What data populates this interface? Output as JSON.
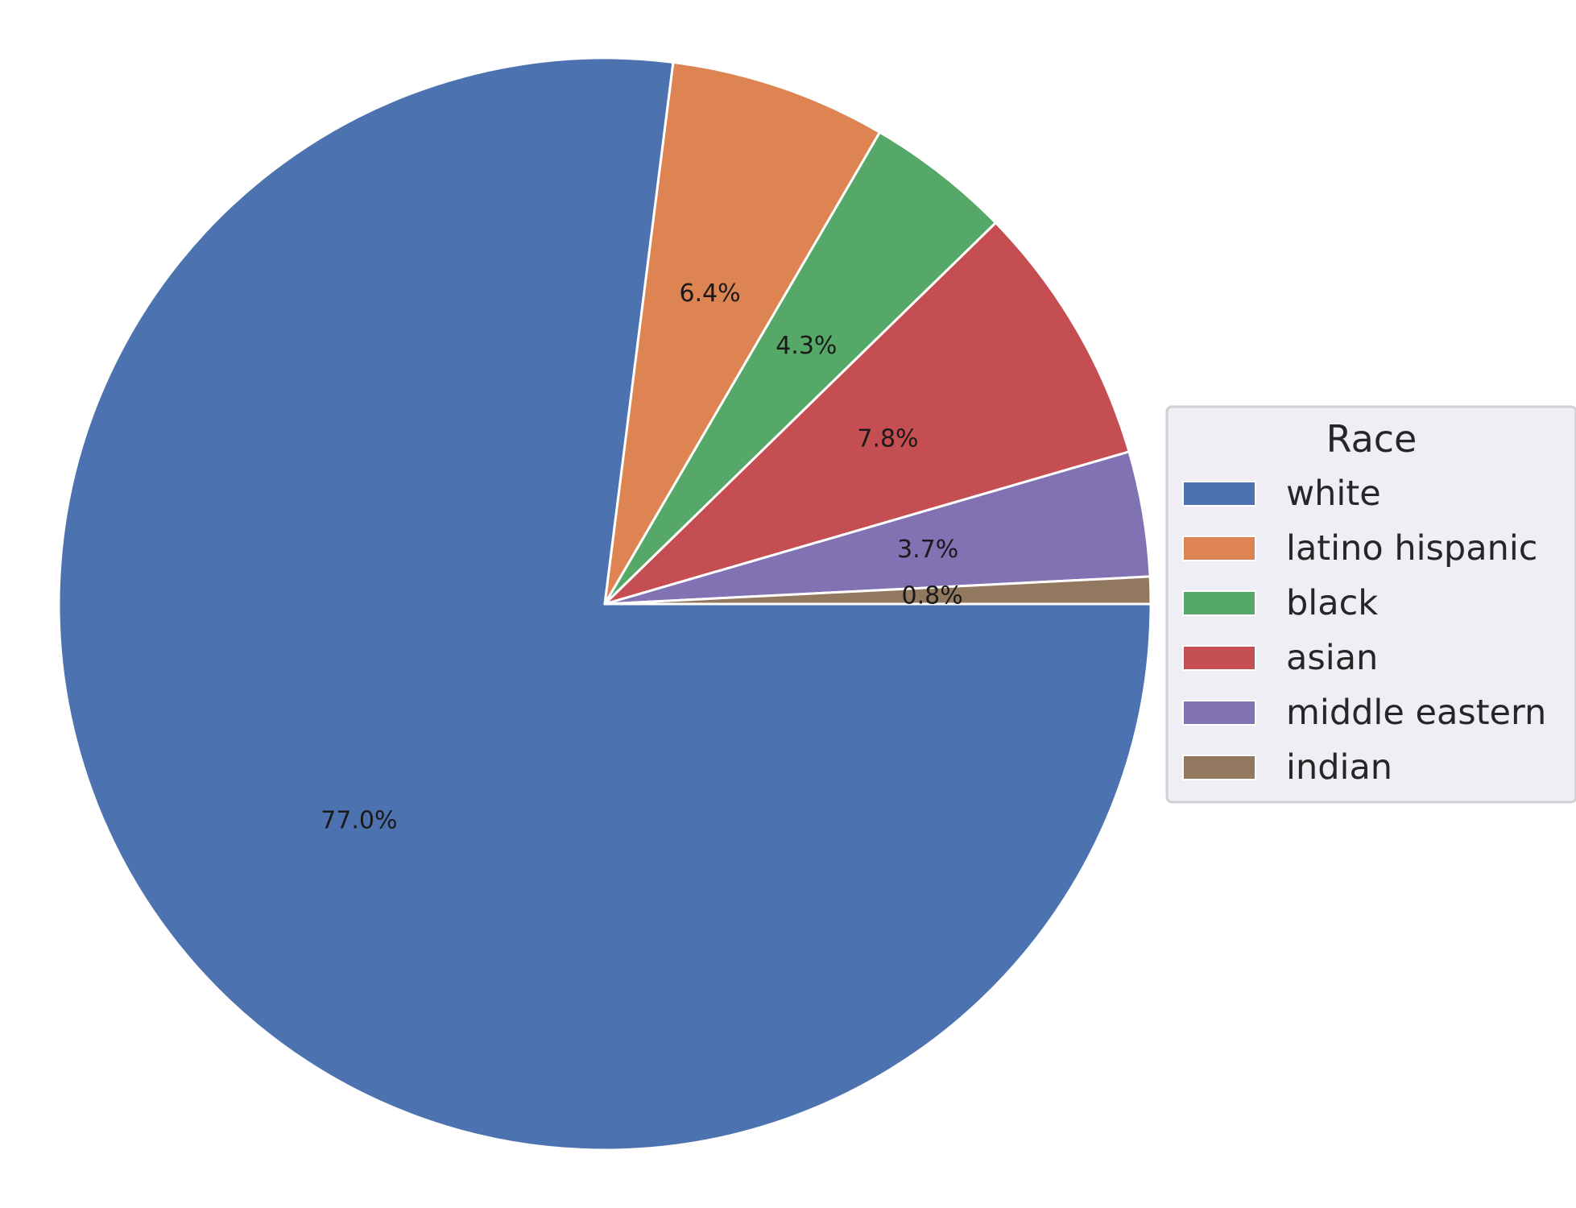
{
  "chart_data": {
    "type": "pie",
    "categories": [
      "white",
      "latino hispanic",
      "black",
      "asian",
      "middle eastern",
      "indian"
    ],
    "values": [
      77.0,
      6.4,
      4.3,
      7.8,
      3.7,
      0.8
    ],
    "labels": [
      "77.0%",
      "6.4%",
      "4.3%",
      "7.8%",
      "3.7%",
      "0.8%"
    ],
    "colors": [
      "#4c72b0",
      "#dd8452",
      "#55a868",
      "#c44e52",
      "#8172b3",
      "#937860"
    ],
    "start_angle_deg": 0,
    "direction": "clockwise",
    "legend": {
      "title": "Race",
      "placement": "center-right"
    }
  }
}
